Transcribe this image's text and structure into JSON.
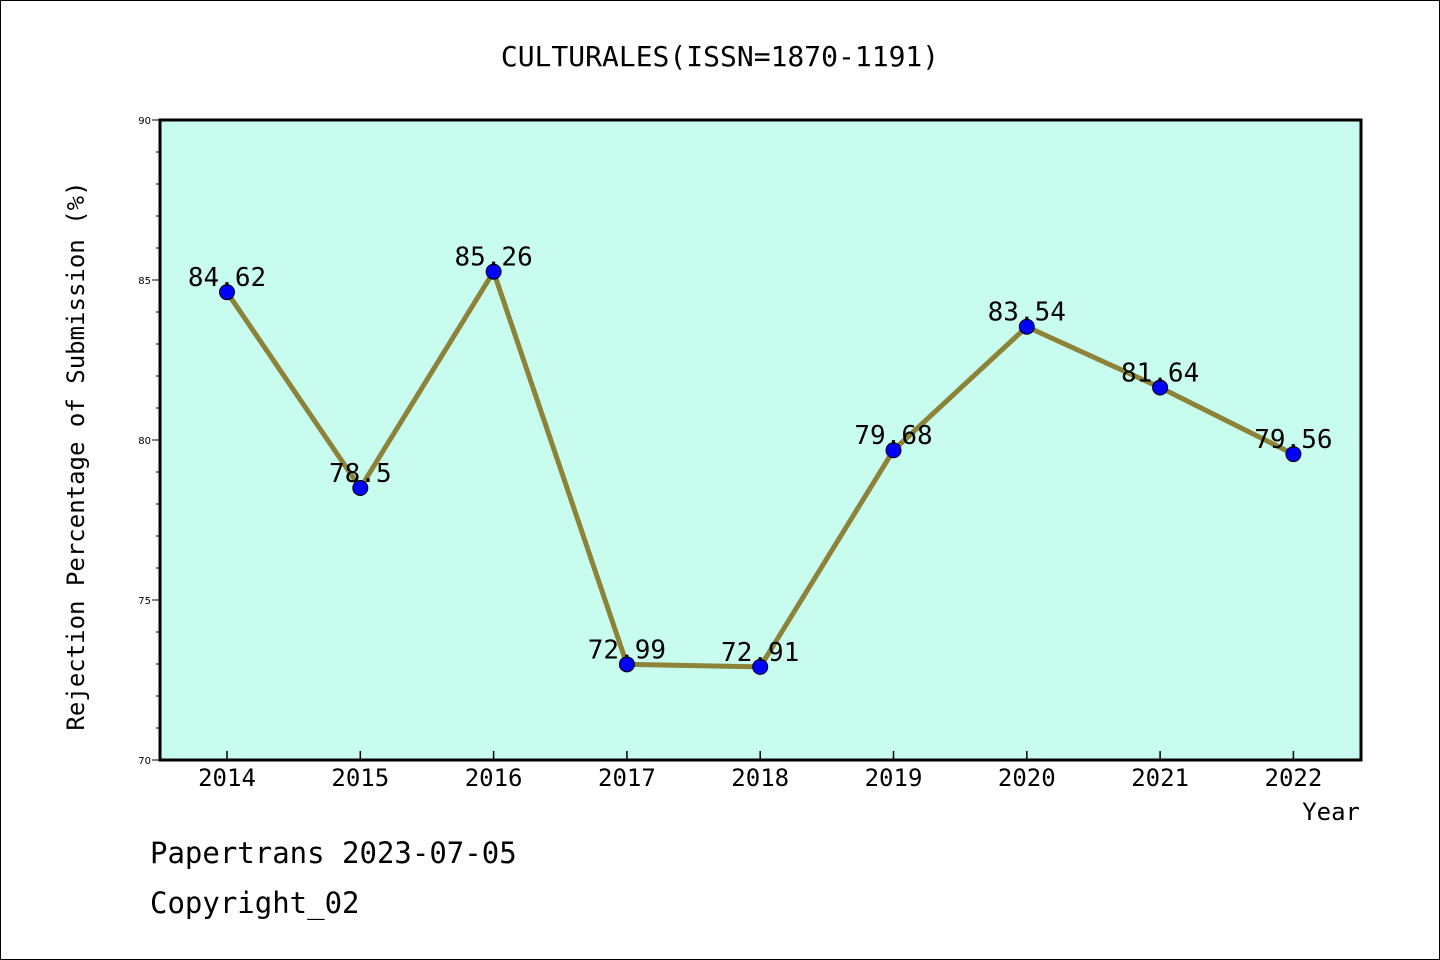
{
  "chart_data": {
    "type": "line",
    "title": "CULTURALES(ISSN=1870-1191)",
    "xlabel": "Year",
    "ylabel": "Rejection Percentage of Submission (%)",
    "categories": [
      "2014",
      "2015",
      "2016",
      "2017",
      "2018",
      "2019",
      "2020",
      "2021",
      "2022"
    ],
    "values": [
      84.62,
      78.5,
      85.26,
      72.99,
      72.91,
      79.68,
      83.54,
      81.64,
      79.56
    ],
    "data_labels": [
      "84.62",
      "78.5",
      "85.26",
      "72.99",
      "72.91",
      "79.68",
      "83.54",
      "81.64",
      "79.56"
    ],
    "ylim": [
      70,
      90
    ],
    "yticks": [
      "70",
      "75",
      "80",
      "85",
      "90"
    ],
    "grid": false,
    "colors": {
      "plot_background": "#c8fcee",
      "line": "#8c8238",
      "marker": "#0000ff"
    }
  },
  "footer": {
    "line1": "Papertrans 2023-07-05",
    "line2": "Copyright_02"
  }
}
